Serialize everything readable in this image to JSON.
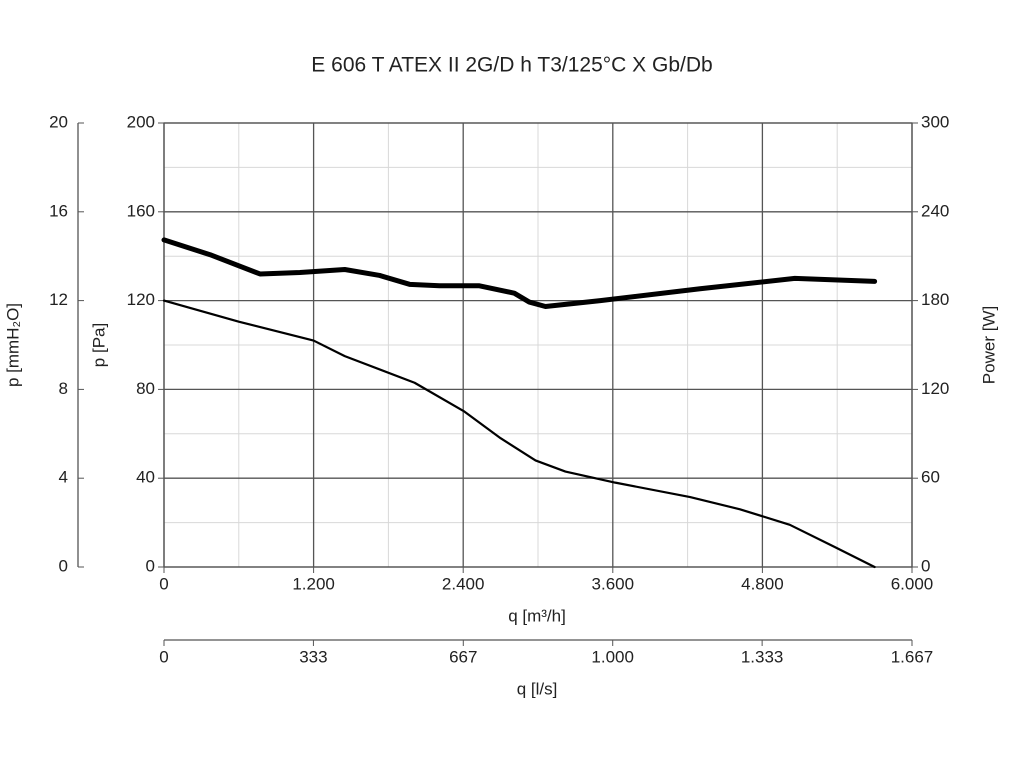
{
  "chart_data": {
    "type": "line",
    "title": "E 606 T ATEX II 2G/D h T3/125°C X Gb/Db",
    "x_label": "q [m³/h]",
    "y_label": "p [Pa]",
    "y2_label": "Power [W]",
    "y3_label": "p [mmH₂O]",
    "x2_label": "q [l/s]",
    "xlim": [
      0,
      6000
    ],
    "xticks": [
      0,
      {
        "value": 1200,
        "label": "1.200"
      },
      {
        "value": 2400,
        "label": "2.400"
      },
      {
        "value": 3600,
        "label": "3.600"
      },
      {
        "value": 4800,
        "label": "4.800"
      },
      {
        "value": 6000,
        "label": "6.000"
      }
    ],
    "x2lim": [
      0,
      1667
    ],
    "x2ticks": [
      0,
      333,
      667,
      {
        "value": 1000,
        "label": "1.000"
      },
      {
        "value": 1333,
        "label": "1.333"
      },
      {
        "value": 1667,
        "label": "1.667"
      }
    ],
    "ylim": [
      0,
      200
    ],
    "yticks": [
      0,
      40,
      80,
      120,
      160,
      200
    ],
    "y2lim": [
      0,
      300
    ],
    "y2ticks": [
      0,
      60,
      120,
      180,
      240,
      300
    ],
    "y3lim": [
      0,
      20
    ],
    "y3ticks": [
      0,
      4,
      8,
      12,
      16,
      20
    ],
    "grid": true,
    "minor_grid": true,
    "series": [
      {
        "color": "#000000",
        "axis": "y",
        "x": [
          0,
          600,
          1200,
          1450,
          2010,
          2410,
          2700,
          2980,
          3220,
          3620,
          4220,
          4620,
          5020,
          5380,
          5700
        ],
        "values": [
          120,
          110.5,
          102,
          95,
          83,
          70,
          58,
          48,
          43,
          38,
          31.5,
          26,
          19,
          9,
          0
        ]
      },
      {
        "color": "#000000",
        "axis": "y2",
        "x": [
          0,
          370,
          770,
          1090,
          1450,
          1730,
          1970,
          2210,
          2530,
          2810,
          2930,
          3060,
          3500,
          4300,
          5060,
          5700
        ],
        "values": [
          221,
          211,
          198,
          199,
          201,
          197,
          191,
          190,
          190,
          185,
          179,
          176,
          180,
          188,
          195,
          193
        ]
      }
    ]
  }
}
